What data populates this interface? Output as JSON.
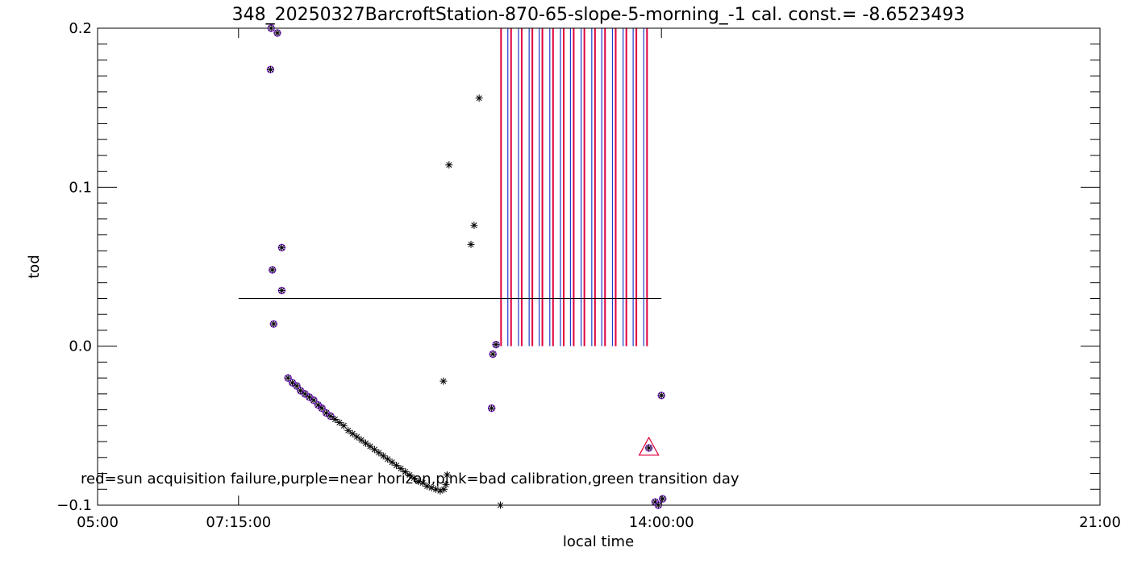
{
  "chart_data": {
    "type": "scatter",
    "title": "348_20250327BarcroftStation-870-65-slope-5-morning_-1 cal. const.= -8.6523493",
    "xlabel": "local time",
    "ylabel": "tod",
    "x_unit": "hours",
    "xlim": [
      5.0,
      21.0
    ],
    "ylim": [
      -0.1,
      0.2
    ],
    "x_ticks": [
      {
        "value": 5.0,
        "label": "05:00"
      },
      {
        "value": 7.25,
        "label": "07:15:00"
      },
      {
        "value": 14.0,
        "label": "14:00:00"
      },
      {
        "value": 21.0,
        "label": "21:00"
      }
    ],
    "y_ticks": [
      {
        "value": 0.2,
        "label": "0.2"
      },
      {
        "value": 0.1,
        "label": "0.1"
      },
      {
        "value": 0.0,
        "label": "0.0"
      },
      {
        "value": -0.1,
        "label": "−0.1"
      }
    ],
    "reference_line": {
      "y": 0.03,
      "x_start": 7.25,
      "x_end": 14.0
    },
    "legend_text": "red=sun acquisition failure,purple=near horizon,pink=bad calibration,green transition day",
    "colors": {
      "red": "#e0003c",
      "purple": "#8a2be2",
      "blue": "#1e3cc8",
      "black": "#000000"
    },
    "series": [
      {
        "marker": "asterisk",
        "flag": "purple",
        "points": [
          [
            7.77,
            0.2
          ],
          [
            7.87,
            0.197
          ],
          [
            7.76,
            0.174
          ],
          [
            7.79,
            0.048
          ],
          [
            7.94,
            0.062
          ],
          [
            7.94,
            0.035
          ],
          [
            7.81,
            0.014
          ],
          [
            8.04,
            -0.02
          ],
          [
            8.11,
            -0.023
          ],
          [
            8.18,
            -0.025
          ],
          [
            8.24,
            -0.028
          ],
          [
            8.31,
            -0.03
          ],
          [
            8.38,
            -0.032
          ],
          [
            8.45,
            -0.034
          ],
          [
            8.52,
            -0.037
          ],
          [
            8.58,
            -0.039
          ],
          [
            8.65,
            -0.042
          ],
          [
            8.72,
            -0.044
          ],
          [
            11.31,
            -0.005
          ],
          [
            11.36,
            0.001
          ],
          [
            11.29,
            -0.039
          ],
          [
            13.8,
            -0.064
          ],
          [
            13.9,
            -0.098
          ],
          [
            13.95,
            -0.1
          ],
          [
            14.0,
            -0.031
          ],
          [
            14.02,
            -0.096
          ]
        ]
      },
      {
        "marker": "asterisk",
        "flag": "none",
        "points": [
          [
            8.79,
            -0.046
          ],
          [
            8.86,
            -0.048
          ],
          [
            8.93,
            -0.05
          ],
          [
            9.0,
            -0.053
          ],
          [
            9.07,
            -0.055
          ],
          [
            9.14,
            -0.057
          ],
          [
            9.21,
            -0.059
          ],
          [
            9.28,
            -0.061
          ],
          [
            9.35,
            -0.063
          ],
          [
            9.42,
            -0.065
          ],
          [
            9.49,
            -0.067
          ],
          [
            9.56,
            -0.069
          ],
          [
            9.63,
            -0.071
          ],
          [
            9.7,
            -0.073
          ],
          [
            9.77,
            -0.075
          ],
          [
            9.84,
            -0.077
          ],
          [
            9.91,
            -0.079
          ],
          [
            9.98,
            -0.081
          ],
          [
            10.05,
            -0.083
          ],
          [
            10.12,
            -0.085
          ],
          [
            10.19,
            -0.086
          ],
          [
            10.26,
            -0.088
          ],
          [
            10.33,
            -0.089
          ],
          [
            10.4,
            -0.09
          ],
          [
            10.47,
            -0.091
          ],
          [
            10.53,
            -0.09
          ],
          [
            10.56,
            -0.087
          ],
          [
            10.61,
            0.114
          ],
          [
            10.96,
            0.064
          ],
          [
            11.01,
            0.076
          ],
          [
            11.09,
            0.156
          ],
          [
            10.52,
            -0.022
          ],
          [
            10.58,
            -0.081
          ],
          [
            11.43,
            -0.1
          ]
        ]
      }
    ],
    "bars": {
      "color": "red",
      "x": [
        11.44,
        11.6,
        11.77,
        11.94,
        12.1,
        12.27,
        12.44,
        12.6,
        12.77,
        12.94,
        13.1,
        13.27,
        13.44,
        13.6,
        13.77
      ],
      "y_top": 0.2,
      "y_bottom": 0.0
    },
    "highlight": {
      "marker": "triangle",
      "color": "red",
      "x": 13.8,
      "y": -0.064
    }
  }
}
